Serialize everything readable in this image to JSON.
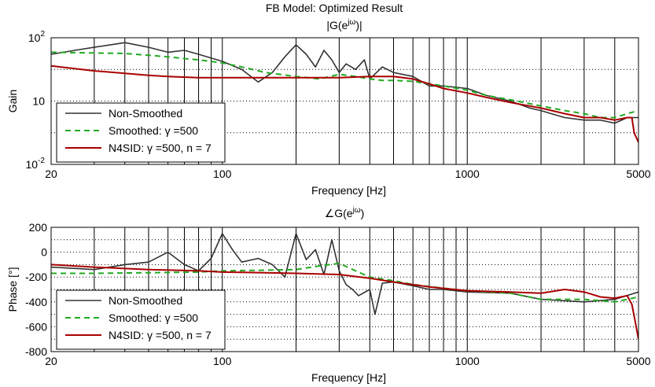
{
  "figure_title": "FB Model: Optimized Result",
  "colors": {
    "non_smoothed": "#333333",
    "smoothed": "#22aa22",
    "n4sid": "#aa0000"
  },
  "chart_data": [
    {
      "type": "line",
      "title_prefix": "|G(e",
      "title_sup": "jω",
      "title_suffix": ")|",
      "xlabel": "Frequency [Hz]",
      "ylabel": "Gain",
      "xscale": "log",
      "yscale": "log",
      "xlim": [
        20,
        5000
      ],
      "ylim": [
        0.01,
        100
      ],
      "x_ticks": [
        "20",
        "100",
        "1000",
        "5000"
      ],
      "y_ticks": [
        {
          "base": "10",
          "exp": "2"
        },
        {
          "base": "10",
          "exp": ""
        },
        {
          "base": "10",
          "exp": "-2"
        }
      ],
      "y_tick_values": [
        100,
        1,
        0.01
      ],
      "legend_position": "bottom-left",
      "series": [
        {
          "name": "Non-Smoothed",
          "x": [
            20,
            25,
            30,
            40,
            50,
            60,
            70,
            80,
            100,
            120,
            140,
            160,
            180,
            200,
            220,
            240,
            260,
            280,
            300,
            320,
            350,
            380,
            400,
            450,
            500,
            600,
            700,
            800,
            1000,
            1200,
            1500,
            1800,
            2000,
            2200,
            2500,
            3000,
            3500,
            4000,
            4500,
            5000
          ],
          "y": [
            30,
            40,
            50,
            70,
            50,
            35,
            40,
            30,
            18,
            10,
            4,
            8,
            25,
            60,
            30,
            12,
            40,
            20,
            8,
            15,
            10,
            20,
            5,
            12,
            8,
            6,
            3,
            3,
            2.5,
            1.5,
            1.0,
            0.6,
            0.5,
            0.4,
            0.3,
            0.25,
            0.25,
            0.2,
            0.3,
            0.3
          ]
        },
        {
          "name": "Smoothed: γ =500",
          "x": [
            20,
            30,
            40,
            50,
            60,
            70,
            80,
            100,
            120,
            150,
            200,
            250,
            300,
            350,
            400,
            450,
            500,
            600,
            700,
            800,
            1000,
            1200,
            1500,
            2000,
            2500,
            3000,
            3500,
            4000,
            4500,
            5000
          ],
          "y": [
            35,
            33,
            32,
            28,
            25,
            22,
            20,
            16,
            12,
            8,
            6,
            5,
            7,
            6,
            5,
            4.5,
            4.5,
            4.2,
            3.5,
            3,
            2.2,
            1.5,
            1.1,
            0.7,
            0.5,
            0.4,
            0.3,
            0.3,
            0.4,
            0.5
          ]
        },
        {
          "name": "N4SID: γ =500, n = 7",
          "x": [
            20,
            30,
            40,
            50,
            60,
            80,
            100,
            150,
            200,
            300,
            400,
            500,
            600,
            700,
            800,
            1000,
            1200,
            1500,
            2000,
            2500,
            3000,
            3500,
            4000,
            4500,
            4700,
            4800,
            5000
          ],
          "y": [
            13,
            9,
            7.5,
            6.5,
            6,
            5.5,
            5.5,
            5.5,
            5.5,
            5.5,
            6,
            6,
            5,
            3.5,
            2.5,
            1.8,
            1.3,
            0.9,
            0.6,
            0.4,
            0.3,
            0.3,
            0.25,
            0.3,
            0.3,
            0.1,
            0.05
          ]
        }
      ]
    },
    {
      "type": "line",
      "title_prefix": "∠G(e",
      "title_sup": "jω",
      "title_suffix": ")",
      "xlabel": "Frequency [Hz]",
      "ylabel": "Phase [°]",
      "xscale": "log",
      "yscale": "linear",
      "xlim": [
        20,
        5000
      ],
      "ylim": [
        -800,
        200
      ],
      "x_ticks": [
        "20",
        "100",
        "1000",
        "5000"
      ],
      "y_ticks": [
        "200",
        "0",
        "-200",
        "-400",
        "-600",
        "-800"
      ],
      "y_tick_values": [
        200,
        0,
        -200,
        -400,
        -600,
        -800
      ],
      "legend_position": "bottom-left",
      "series": [
        {
          "name": "Non-Smoothed",
          "x": [
            20,
            30,
            40,
            50,
            60,
            70,
            80,
            90,
            100,
            110,
            120,
            140,
            160,
            180,
            200,
            220,
            240,
            260,
            280,
            300,
            320,
            340,
            360,
            400,
            420,
            450,
            500,
            600,
            700,
            800,
            1000,
            1500,
            2000,
            3000,
            4000,
            5000
          ],
          "y": [
            -120,
            -140,
            -100,
            -80,
            0,
            -100,
            -150,
            -50,
            150,
            20,
            -80,
            -50,
            -100,
            -200,
            150,
            -60,
            20,
            -180,
            100,
            -150,
            -260,
            -300,
            -350,
            -300,
            -500,
            -250,
            -240,
            -270,
            -300,
            -300,
            -320,
            -330,
            -380,
            -400,
            -380,
            -320
          ]
        },
        {
          "name": "Smoothed: γ =500",
          "x": [
            20,
            30,
            50,
            80,
            100,
            150,
            200,
            250,
            300,
            350,
            400,
            500,
            600,
            800,
            1000,
            1500,
            2000,
            3000,
            4000,
            4500,
            5000
          ],
          "y": [
            -170,
            -170,
            -165,
            -160,
            -150,
            -145,
            -140,
            -110,
            -90,
            -150,
            -200,
            -230,
            -260,
            -290,
            -310,
            -330,
            -380,
            -380,
            -400,
            -380,
            -360
          ]
        },
        {
          "name": "N4SID: γ =500, n = 7",
          "x": [
            20,
            30,
            50,
            80,
            100,
            150,
            200,
            300,
            400,
            500,
            700,
            1000,
            1500,
            2000,
            2500,
            3000,
            3500,
            4000,
            4500,
            4700,
            4850,
            5000
          ],
          "y": [
            -100,
            -120,
            -140,
            -150,
            -160,
            -165,
            -170,
            -180,
            -210,
            -240,
            -280,
            -310,
            -320,
            -330,
            -300,
            -320,
            -360,
            -370,
            -350,
            -420,
            -560,
            -700
          ]
        }
      ]
    }
  ]
}
